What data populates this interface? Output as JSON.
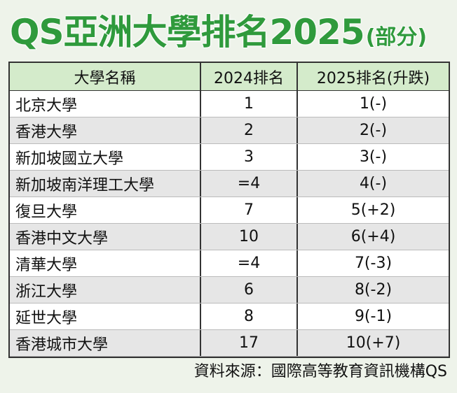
{
  "header": {
    "title": "QS亞洲大學排名2025",
    "subtitle": "(部分)"
  },
  "table": {
    "columns": [
      "大學名稱",
      "2024排名",
      "2025排名(升跌)"
    ],
    "rows": [
      [
        "北京大學",
        1,
        "1(-)"
      ],
      [
        "香港大學",
        2,
        "2(-)"
      ],
      [
        "新加坡國立大學",
        3,
        "3(-)"
      ],
      [
        "新加坡南洋理工大學",
        "=4",
        "4(-)"
      ],
      [
        "復旦大學",
        7,
        "5(+2)"
      ],
      [
        "香港中文大學",
        10,
        "6(+4)"
      ],
      [
        "清華大學",
        "=4",
        "7(-3)"
      ],
      [
        "浙江大學",
        6,
        "8(-2)"
      ],
      [
        "延世大學",
        8,
        "9(-1)"
      ],
      [
        "香港城市大學",
        17,
        "10(+7)"
      ]
    ]
  },
  "footer": {
    "source": "資料來源：國際高等教育資訊機構QS"
  }
}
